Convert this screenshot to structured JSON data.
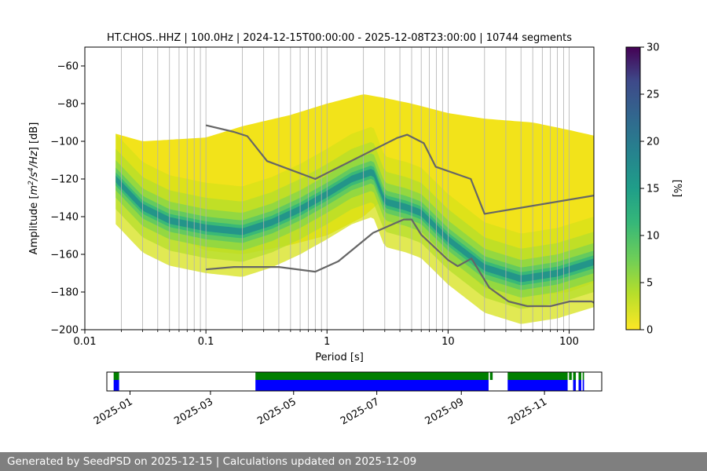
{
  "chart_data": [
    {
      "type": "heatmap",
      "title": "HT.CHOS..HHZ | 100.0Hz | 2024-12-15T00:00:00 - 2025-12-08T23:00:00 | 10744 segments",
      "xlabel": "Period [s]",
      "ylabel": "Amplitude [m2/s4/Hz] [dB]",
      "x_scale": "log",
      "xlim": [
        0.01,
        160
      ],
      "ylim": [
        -200,
        -50
      ],
      "x_ticks": [
        "0.01",
        "0.1",
        "1",
        "10",
        "100"
      ],
      "y_ticks": [
        "−60",
        "−80",
        "−100",
        "−120",
        "−140",
        "−160",
        "−180",
        "−200"
      ],
      "grid": "vertical",
      "colorbar": {
        "label": "[%]",
        "range": [
          0,
          30
        ],
        "ticks": [
          "0",
          "5",
          "10",
          "15",
          "20",
          "25",
          "30"
        ],
        "colormap": "viridis"
      },
      "density_mode_db": [
        {
          "period": 0.018,
          "db": -120
        },
        {
          "period": 0.03,
          "db": -135
        },
        {
          "period": 0.05,
          "db": -142
        },
        {
          "period": 0.1,
          "db": -146
        },
        {
          "period": 0.2,
          "db": -148
        },
        {
          "period": 0.35,
          "db": -143
        },
        {
          "period": 0.6,
          "db": -136
        },
        {
          "period": 1,
          "db": -128
        },
        {
          "period": 1.6,
          "db": -120
        },
        {
          "period": 2.4,
          "db": -116
        },
        {
          "period": 3,
          "db": -132
        },
        {
          "period": 4.5,
          "db": -135
        },
        {
          "period": 6,
          "db": -138
        },
        {
          "period": 10,
          "db": -152
        },
        {
          "period": 20,
          "db": -167
        },
        {
          "period": 40,
          "db": -173
        },
        {
          "period": 80,
          "db": -170
        },
        {
          "period": 160,
          "db": -164
        }
      ],
      "density_range_db": [
        {
          "period": 0.018,
          "top": -96,
          "bottom": -128
        },
        {
          "period": 0.03,
          "top": -100,
          "bottom": -143
        },
        {
          "period": 0.1,
          "top": -98,
          "bottom": -158
        },
        {
          "period": 0.2,
          "top": -92,
          "bottom": -160
        },
        {
          "period": 0.5,
          "top": -86,
          "bottom": -155
        },
        {
          "period": 1,
          "top": -80,
          "bottom": -150
        },
        {
          "period": 2,
          "top": -75,
          "bottom": -140
        },
        {
          "period": 3,
          "top": -77,
          "bottom": -130
        },
        {
          "period": 5,
          "top": -80,
          "bottom": -140
        },
        {
          "period": 10,
          "top": -85,
          "bottom": -160
        },
        {
          "period": 20,
          "top": -88,
          "bottom": -178
        },
        {
          "period": 50,
          "top": -90,
          "bottom": -182
        },
        {
          "period": 100,
          "top": -94,
          "bottom": -180
        },
        {
          "period": 160,
          "top": -97,
          "bottom": -175
        }
      ],
      "series": [
        {
          "x": [
            0.1,
            0.17,
            0.22,
            0.32,
            0.8,
            3.8,
            4.6,
            6.3,
            7.9,
            15.4,
            20,
            160
          ],
          "y": [
            -91.5,
            -95,
            -97.3,
            -110.5,
            -120,
            -98.2,
            -96.5,
            -101,
            -113.5,
            -120,
            -138.5,
            -128.8
          ]
        },
        {
          "x": [
            0.1,
            0.17,
            0.4,
            0.8,
            1.24,
            2.4,
            4.3,
            5,
            6,
            10,
            12,
            15.6,
            21.9,
            31.6,
            45,
            70,
            101,
            154,
            160
          ],
          "y": [
            -168,
            -166.7,
            -166.7,
            -169.2,
            -163.7,
            -148.6,
            -141.5,
            -141.5,
            -149.6,
            -163,
            -166.3,
            -162.2,
            -177.7,
            -185,
            -187.5,
            -187.5,
            -185,
            -185,
            -185.7
          ]
        }
      ]
    },
    {
      "type": "timeline",
      "x_ticks": [
        "2025-01",
        "2025-03",
        "2025-05",
        "2025-07",
        "2025-09",
        "2025-11"
      ],
      "legend": "none",
      "colors": {
        "upper": "#007f00",
        "lower": "#0000ff"
      },
      "coverage": [
        {
          "start": "2024-12-20",
          "end": "2024-12-24",
          "upper": true,
          "lower": true
        },
        {
          "start": "2025-04-03",
          "end": "2025-09-21",
          "upper": true,
          "lower": true
        },
        {
          "start": "2025-09-22",
          "end": "2025-09-24",
          "upper": true,
          "lower": false
        },
        {
          "start": "2025-10-05",
          "end": "2025-11-18",
          "upper": true,
          "lower": true
        },
        {
          "start": "2025-11-19",
          "end": "2025-11-21",
          "upper": true,
          "lower": false
        },
        {
          "start": "2025-11-22",
          "end": "2025-11-24",
          "upper": true,
          "lower": true
        },
        {
          "start": "2025-11-26",
          "end": "2025-11-28",
          "upper": true,
          "lower": true
        },
        {
          "start": "2025-11-29",
          "end": "2025-11-30",
          "upper": true,
          "lower": true
        }
      ],
      "xlim": [
        "2024-12-15",
        "2025-12-13"
      ]
    }
  ],
  "footer": "Generated by SeedPSD on 2025-12-15 | Calculations updated on 2025-12-09"
}
